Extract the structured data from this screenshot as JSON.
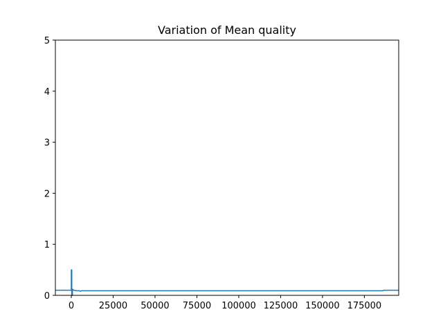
{
  "chart_data": {
    "type": "line",
    "title": "Variation of Mean quality",
    "xlabel": "",
    "ylabel": "",
    "xlim": [
      -9500,
      195500
    ],
    "ylim": [
      0,
      5
    ],
    "grid": false,
    "x_ticks": [
      0,
      25000,
      50000,
      75000,
      100000,
      125000,
      150000,
      175000
    ],
    "x_tick_labels": [
      "0",
      "25000",
      "50000",
      "75000",
      "100000",
      "125000",
      "150000",
      "175000"
    ],
    "y_ticks": [
      0,
      1,
      2,
      3,
      4,
      5
    ],
    "y_tick_labels": [
      "0",
      "1",
      "2",
      "3",
      "4",
      "5"
    ],
    "series": [
      {
        "color": "#1f77b4",
        "x": [
          -9500,
          0,
          0,
          300,
          300,
          700,
          700,
          1500,
          3000,
          5000,
          5500,
          6000,
          10000,
          50000,
          100000,
          150000,
          186000,
          186500,
          195500
        ],
        "y": [
          0.1,
          0.1,
          0.5,
          0.5,
          0.0,
          0.0,
          0.12,
          0.1,
          0.09,
          0.09,
          0.08,
          0.09,
          0.09,
          0.09,
          0.09,
          0.09,
          0.09,
          0.1,
          0.1
        ]
      }
    ]
  }
}
